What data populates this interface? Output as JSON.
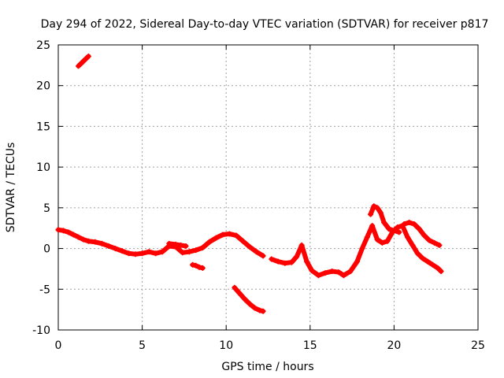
{
  "chart_data": {
    "type": "scatter",
    "title": "Day 294 of 2022, Sidereal Day-to-day VTEC variation (SDTVAR) for receiver p817",
    "xlabel": "GPS time / hours",
    "ylabel": "SDTVAR / TECUs",
    "xlim": [
      0,
      25
    ],
    "ylim": [
      -10,
      25
    ],
    "xticks": [
      0,
      5,
      10,
      15,
      20,
      25
    ],
    "yticks": [
      -10,
      -5,
      0,
      5,
      10,
      15,
      20,
      25
    ],
    "grid": true,
    "marker": "+",
    "color": "#ff0000",
    "series": [
      {
        "name": "segment-early-high",
        "x": [
          1.2,
          1.35,
          1.5,
          1.65,
          1.8
        ],
        "y": [
          22.4,
          22.7,
          23.0,
          23.3,
          23.6
        ]
      },
      {
        "name": "segment-main-1",
        "x": [
          0.0,
          0.3,
          0.6,
          0.9,
          1.2,
          1.5,
          1.8,
          2.2,
          2.6,
          3.0,
          3.4,
          3.8,
          4.2,
          4.6,
          5.0,
          5.4,
          5.8,
          6.2,
          6.6,
          7.0,
          7.4,
          7.8,
          8.2,
          8.6,
          9.0,
          9.4,
          9.8,
          10.2,
          10.6,
          11.0,
          11.4,
          11.8,
          12.2
        ],
        "y": [
          2.3,
          2.2,
          2.0,
          1.7,
          1.4,
          1.1,
          0.9,
          0.8,
          0.6,
          0.3,
          0.0,
          -0.3,
          -0.6,
          -0.7,
          -0.6,
          -0.4,
          -0.6,
          -0.4,
          0.3,
          0.2,
          -0.5,
          -0.4,
          -0.2,
          0.1,
          0.8,
          1.3,
          1.7,
          1.8,
          1.6,
          0.9,
          0.2,
          -0.4,
          -0.9
        ]
      },
      {
        "name": "segment-main-1-upper",
        "x": [
          6.6,
          7.0,
          7.3,
          7.6
        ],
        "y": [
          0.6,
          0.5,
          0.4,
          0.3
        ]
      },
      {
        "name": "segment-small-dip",
        "x": [
          8.0,
          8.2,
          8.4,
          8.6
        ],
        "y": [
          -2.0,
          -2.1,
          -2.3,
          -2.4
        ]
      },
      {
        "name": "segment-descending",
        "x": [
          10.5,
          10.8,
          11.1,
          11.4,
          11.7,
          12.0,
          12.2
        ],
        "y": [
          -4.8,
          -5.5,
          -6.2,
          -6.8,
          -7.3,
          -7.6,
          -7.7
        ]
      },
      {
        "name": "segment-main-2",
        "x": [
          12.7,
          13.1,
          13.5,
          13.9,
          14.2,
          14.5,
          14.8,
          15.1,
          15.5,
          15.9,
          16.3,
          16.7,
          17.0,
          17.4,
          17.8,
          18.1,
          18.4,
          18.7,
          19.0,
          19.3,
          19.6,
          19.9,
          20.2,
          20.5,
          20.8,
          21.1,
          21.4,
          21.7,
          22.0,
          22.3,
          22.6,
          22.8
        ],
        "y": [
          -1.3,
          -1.6,
          -1.8,
          -1.7,
          -1.0,
          0.4,
          -1.6,
          -2.7,
          -3.3,
          -3.0,
          -2.8,
          -2.9,
          -3.3,
          -2.8,
          -1.6,
          0.0,
          1.4,
          2.8,
          1.1,
          0.7,
          0.9,
          2.0,
          2.6,
          2.8,
          1.4,
          0.4,
          -0.6,
          -1.2,
          -1.6,
          -2.0,
          -2.4,
          -2.8
        ]
      },
      {
        "name": "segment-main-2-peak",
        "x": [
          18.6,
          18.8,
          19.0,
          19.2,
          19.4,
          19.7,
          20.0,
          20.3
        ],
        "y": [
          4.2,
          5.2,
          5.0,
          4.4,
          3.2,
          2.4,
          2.2,
          2.0
        ]
      },
      {
        "name": "segment-main-2-late",
        "x": [
          20.6,
          20.9,
          21.2,
          21.5,
          21.8,
          22.1,
          22.4,
          22.7
        ],
        "y": [
          3.0,
          3.2,
          3.0,
          2.4,
          1.6,
          1.0,
          0.7,
          0.4
        ]
      }
    ]
  }
}
